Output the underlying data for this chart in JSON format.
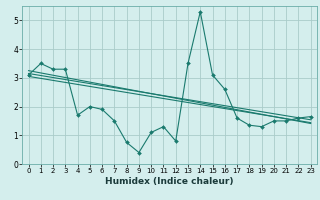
{
  "xlabel": "Humidex (Indice chaleur)",
  "x_data": [
    0,
    1,
    2,
    3,
    4,
    5,
    6,
    7,
    8,
    9,
    10,
    11,
    12,
    13,
    14,
    15,
    16,
    17,
    18,
    19,
    20,
    21,
    22,
    23
  ],
  "main_line": [
    3.1,
    3.5,
    3.3,
    3.3,
    1.7,
    2.0,
    1.9,
    1.5,
    0.75,
    0.4,
    1.1,
    1.3,
    0.8,
    3.5,
    5.3,
    3.1,
    2.6,
    1.6,
    1.35,
    1.3,
    1.5,
    1.5,
    1.6,
    1.65
  ],
  "trend_line1": [
    3.15,
    3.08,
    3.01,
    2.94,
    2.87,
    2.8,
    2.73,
    2.66,
    2.59,
    2.52,
    2.45,
    2.38,
    2.31,
    2.24,
    2.17,
    2.1,
    2.03,
    1.96,
    1.89,
    1.82,
    1.75,
    1.68,
    1.61,
    1.54
  ],
  "trend_line2": [
    3.25,
    3.17,
    3.09,
    3.01,
    2.93,
    2.85,
    2.77,
    2.69,
    2.61,
    2.53,
    2.45,
    2.37,
    2.29,
    2.21,
    2.13,
    2.05,
    1.97,
    1.89,
    1.81,
    1.73,
    1.65,
    1.57,
    1.49,
    1.41
  ],
  "trend_line3": [
    3.05,
    2.98,
    2.91,
    2.84,
    2.77,
    2.7,
    2.63,
    2.56,
    2.49,
    2.42,
    2.35,
    2.28,
    2.21,
    2.14,
    2.07,
    2.0,
    1.93,
    1.86,
    1.79,
    1.72,
    1.65,
    1.58,
    1.51,
    1.44
  ],
  "line_color": "#1a7a6e",
  "bg_color": "#d4eeed",
  "grid_color": "#aaccca",
  "ylim": [
    0,
    5.5
  ],
  "xlim": [
    -0.5,
    23.5
  ],
  "yticks": [
    0,
    1,
    2,
    3,
    4,
    5
  ],
  "xticks": [
    0,
    1,
    2,
    3,
    4,
    5,
    6,
    7,
    8,
    9,
    10,
    11,
    12,
    13,
    14,
    15,
    16,
    17,
    18,
    19,
    20,
    21,
    22,
    23
  ]
}
